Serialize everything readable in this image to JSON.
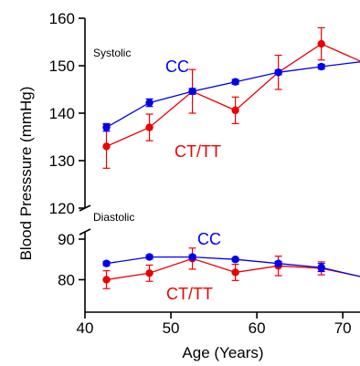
{
  "chart_data": {
    "type": "line",
    "xlabel": "Age (Years)",
    "ylabel": "Blood Presssure (mmHg)",
    "xlim": [
      40,
      72
    ],
    "xticks": [
      40,
      50,
      60,
      70
    ],
    "axis_break_between": [
      90,
      120
    ],
    "ylim_upper": [
      120,
      160
    ],
    "ylim_lower": [
      72,
      90
    ],
    "yticks_upper": [
      120,
      130,
      140,
      150,
      160
    ],
    "yticks_lower": [
      80,
      90
    ],
    "colors": {
      "CC": "#0000ee",
      "CTTT": "#ee0000"
    },
    "panels": [
      {
        "label": "Systolic",
        "series": [
          {
            "name": "CC",
            "x": [
              42.5,
              47.5,
              52.5,
              57.5,
              62.5,
              67.5,
              72
            ],
            "y": [
              137.0,
              142.2,
              144.6,
              146.6,
              148.6,
              149.8,
              150.8
            ],
            "err": [
              0.8,
              0.8,
              0.6,
              0.5,
              0.5,
              0.5,
              null
            ]
          },
          {
            "name": "CT/TT",
            "x": [
              42.5,
              47.5,
              52.5,
              57.5,
              62.5,
              67.5,
              72
            ],
            "y": [
              133.0,
              137.0,
              144.6,
              140.6,
              148.6,
              154.6,
              151.0
            ],
            "err": [
              4.6,
              2.8,
              4.6,
              2.8,
              3.6,
              3.4,
              null
            ]
          }
        ]
      },
      {
        "label": "Diastolic",
        "series": [
          {
            "name": "CC",
            "x": [
              42.5,
              47.5,
              52.5,
              57.5,
              62.5,
              67.5,
              72
            ],
            "y": [
              84.0,
              85.6,
              85.6,
              85.0,
              84.0,
              83.0,
              80.8
            ],
            "err": [
              0.5,
              0.5,
              0.5,
              0.4,
              0.5,
              1.0,
              null
            ]
          },
          {
            "name": "CT/TT",
            "x": [
              42.5,
              47.5,
              52.5,
              57.5,
              62.5,
              67.5,
              72
            ],
            "y": [
              80.0,
              81.6,
              85.2,
              81.8,
              83.4,
              82.8,
              80.8
            ],
            "err": [
              2.2,
              2.0,
              2.6,
              2.0,
              2.4,
              1.6,
              null
            ]
          }
        ]
      }
    ]
  }
}
